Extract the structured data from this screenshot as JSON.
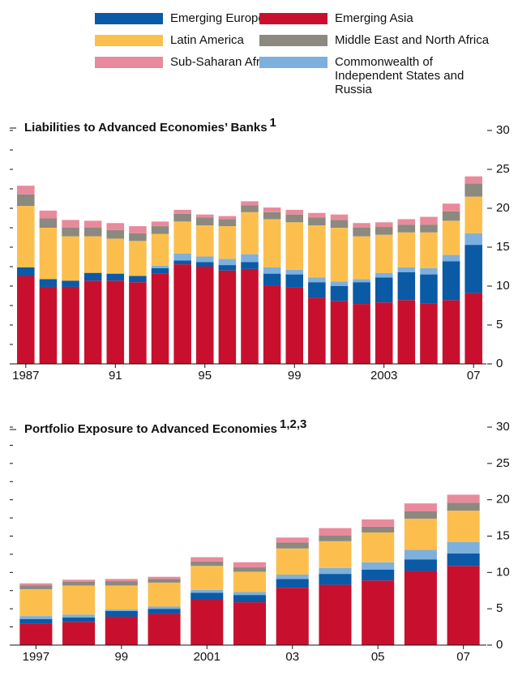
{
  "chart_data": [
    {
      "type": "stacked_bar",
      "title": "Liabilities to Advanced Economies’ Banks",
      "title_note": "1",
      "categories": [
        "1987",
        null,
        null,
        null,
        "91",
        null,
        null,
        null,
        "95",
        null,
        null,
        null,
        "99",
        null,
        null,
        null,
        "2003",
        null,
        null,
        null,
        "07"
      ],
      "series": [
        {
          "name": "Emerging Asia",
          "color": "#c8102e",
          "values": [
            11.3,
            9.9,
            9.9,
            10.7,
            10.7,
            10.5,
            11.6,
            12.8,
            12.5,
            12.0,
            12.2,
            10.1,
            9.8,
            8.5,
            8.1,
            7.7,
            7.9,
            8.2,
            7.8,
            8.2,
            9.1
          ]
        },
        {
          "name": "Emerging Europe",
          "color": "#0b5aa6",
          "values": [
            1.1,
            1.0,
            0.8,
            1.0,
            0.9,
            0.8,
            0.7,
            0.5,
            0.6,
            0.7,
            0.9,
            1.5,
            1.7,
            2.0,
            1.9,
            2.8,
            3.2,
            3.6,
            3.7,
            5.0,
            6.2
          ]
        },
        {
          "name": "Commonwealth of Independent States and Russia",
          "color": "#7eb0dd",
          "values": [
            0,
            0,
            0,
            0,
            0,
            0,
            0.3,
            0.9,
            0.7,
            0.8,
            1.0,
            0.8,
            0.6,
            0.6,
            0.6,
            0.4,
            0.6,
            0.6,
            0.8,
            0.8,
            1.5
          ]
        },
        {
          "name": "Latin America",
          "color": "#fcbf4e",
          "values": [
            7.9,
            6.6,
            5.7,
            4.7,
            4.5,
            4.5,
            4.1,
            4.1,
            4.0,
            4.2,
            5.4,
            6.2,
            6.1,
            6.7,
            6.9,
            5.5,
            4.9,
            4.5,
            4.6,
            4.4,
            4.7
          ]
        },
        {
          "name": "Middle East and North Africa",
          "color": "#8b8980",
          "values": [
            1.5,
            1.2,
            1.1,
            1.1,
            1.1,
            1.0,
            1.0,
            1.0,
            1.0,
            0.9,
            0.9,
            0.9,
            1.0,
            1.0,
            1.0,
            1.1,
            1.0,
            1.0,
            1.0,
            1.2,
            1.7
          ]
        },
        {
          "name": "Sub-Saharan Africa",
          "color": "#e98a9c",
          "values": [
            1.1,
            1.0,
            1.0,
            0.9,
            0.9,
            0.9,
            0.6,
            0.5,
            0.4,
            0.4,
            0.5,
            0.6,
            0.6,
            0.6,
            0.7,
            0.6,
            0.6,
            0.7,
            1.0,
            1.0,
            0.9
          ]
        }
      ],
      "ylim": [
        0,
        30
      ],
      "yticks": [
        0,
        5,
        10,
        15,
        20,
        25,
        30
      ],
      "yticks_minor": [
        2.5,
        7.5,
        12.5,
        17.5,
        22.5,
        27.5
      ]
    },
    {
      "type": "stacked_bar",
      "title": "Portfolio Exposure to Advanced Economies",
      "title_note": "1,2,3",
      "categories": [
        "1997",
        null,
        "99",
        null,
        "2001",
        null,
        "03",
        null,
        "05",
        null,
        "07"
      ],
      "series": [
        {
          "name": "Emerging Asia",
          "color": "#c8102e",
          "values": [
            3.0,
            3.2,
            3.9,
            4.3,
            6.3,
            5.9,
            7.9,
            8.3,
            8.9,
            10.2,
            10.9
          ]
        },
        {
          "name": "Emerging Europe",
          "color": "#0b5aa6",
          "values": [
            0.6,
            0.6,
            0.8,
            0.7,
            0.9,
            1.0,
            1.2,
            1.5,
            1.5,
            1.6,
            1.7
          ]
        },
        {
          "name": "Commonwealth of Independent States and Russia",
          "color": "#7eb0dd",
          "values": [
            0.4,
            0.4,
            0.2,
            0.3,
            0.4,
            0.4,
            0.6,
            0.8,
            1.0,
            1.3,
            1.6
          ]
        },
        {
          "name": "Latin America",
          "color": "#fcbf4e",
          "values": [
            3.7,
            4.0,
            3.3,
            3.3,
            3.3,
            2.8,
            3.6,
            3.7,
            4.1,
            4.3,
            4.3
          ]
        },
        {
          "name": "Middle East and North Africa",
          "color": "#8b8980",
          "values": [
            0.5,
            0.5,
            0.6,
            0.5,
            0.6,
            0.6,
            0.8,
            0.8,
            0.8,
            1.0,
            1.1
          ]
        },
        {
          "name": "Sub-Saharan Africa",
          "color": "#e98a9c",
          "values": [
            0.3,
            0.3,
            0.3,
            0.3,
            0.6,
            0.7,
            0.7,
            1.0,
            1.0,
            1.1,
            1.1
          ]
        }
      ],
      "ylim": [
        0,
        30
      ],
      "yticks": [
        0,
        5,
        10,
        15,
        20,
        25,
        30
      ],
      "yticks_minor": [
        2.5,
        7.5,
        12.5,
        17.5,
        22.5,
        27.5
      ]
    }
  ]
}
